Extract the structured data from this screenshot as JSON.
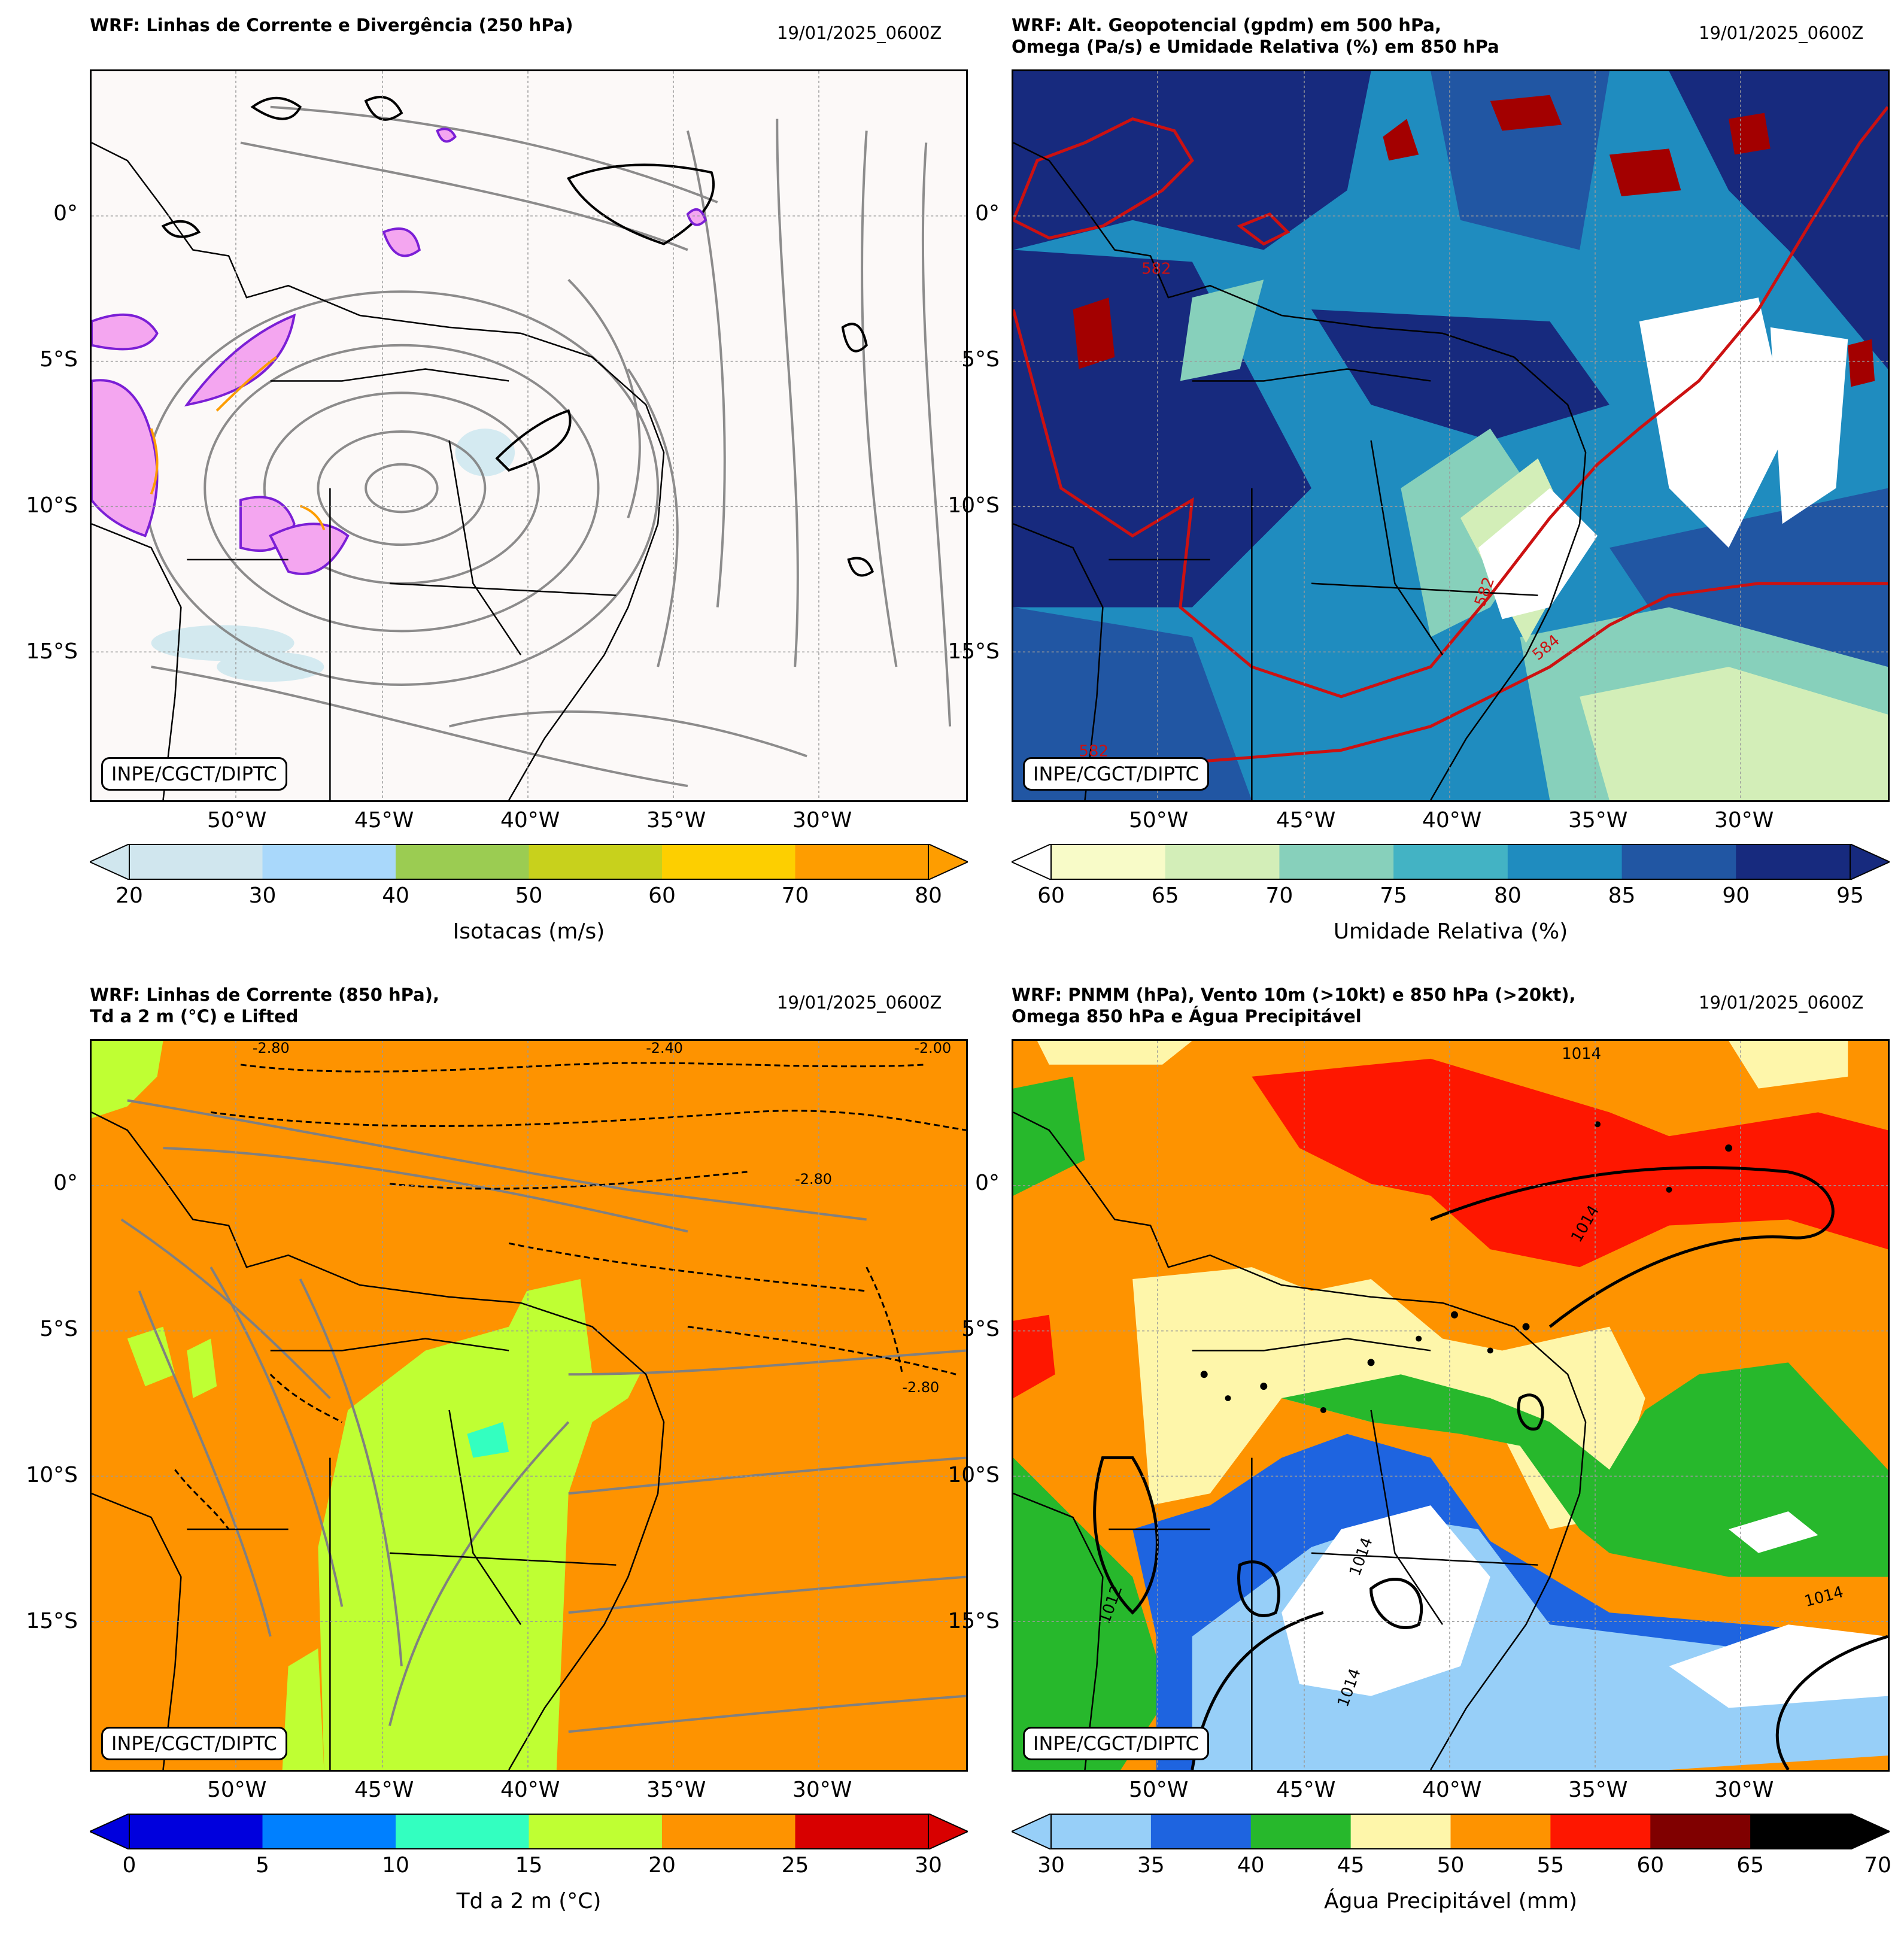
{
  "colors": {
    "coast": "#000000",
    "stream": "#808080",
    "geop": "#cc1111"
  },
  "credit": "INPE/CGCT/DIPTC",
  "x_ticks": [
    "50°W",
    "45°W",
    "40°W",
    "35°W",
    "30°W"
  ],
  "y_ticks": [
    "0°",
    "5°S",
    "10°S",
    "15°S"
  ],
  "panels": [
    {
      "id": "p1",
      "title": "WRF: Linhas de Corrente e Divergência (250 hPa)",
      "date": "19/01/2025_0600Z",
      "colorbar": {
        "label": "Isotacas (m/s)",
        "ticks": [
          "20",
          "30",
          "40",
          "50",
          "60",
          "70",
          "80"
        ],
        "colors": [
          "#d0e6ee",
          "#a9d8fb",
          "#9bcc52",
          "#c8d11c",
          "#fdcf00",
          "#fe9d00"
        ]
      }
    },
    {
      "id": "p2",
      "title": "WRF: Alt. Geopotencial (gpdm) em 500 hPa,\nOmega (Pa/s) e Umidade Relativa (%) em 850 hPa",
      "date": "19/01/2025_0600Z",
      "contour_labels": [
        "582",
        "582",
        "584",
        "582"
      ],
      "colorbar": {
        "label": "Umidade Relativa (%)",
        "ticks": [
          "60",
          "65",
          "70",
          "75",
          "80",
          "85",
          "90",
          "95"
        ],
        "colors": [
          "#f8fbc8",
          "#d3eeb8",
          "#87d0bb",
          "#43b3c4",
          "#1f8cbf",
          "#2156a3",
          "#172a7e"
        ]
      }
    },
    {
      "id": "p3",
      "title": "WRF: Linhas de Corrente (850 hPa),\nTd a 2 m (°C) e Lifted",
      "date": "19/01/2025_0600Z",
      "contour_labels": [
        "-2.80",
        "-2.40",
        "-2.80",
        "-2.00",
        "-2.80"
      ],
      "colorbar": {
        "label": "Td a 2 m (°C)",
        "ticks": [
          "0",
          "5",
          "10",
          "15",
          "20",
          "25",
          "30"
        ],
        "colors": [
          "#0000dd",
          "#0080ff",
          "#33ffc0",
          "#bfff33",
          "#fe9300",
          "#d80000"
        ]
      }
    },
    {
      "id": "p4",
      "title": "WRF: PNMM (hPa), Vento 10m (>10kt) e 850 hPa (>20kt),\nOmega 850 hPa e Água Precipitável",
      "date": "19/01/2025_0600Z",
      "contour_labels": [
        "1014",
        "1014",
        "1012",
        "1014",
        "1014",
        "1014"
      ],
      "colorbar": {
        "label": "Água Precipitável (mm)",
        "ticks": [
          "30",
          "35",
          "40",
          "45",
          "50",
          "55",
          "60",
          "65",
          "70"
        ],
        "colors": [
          "#97cff8",
          "#1e64e0",
          "#27b82c",
          "#fef6aa",
          "#fe9300",
          "#fe1700",
          "#800000",
          "#000000"
        ]
      }
    }
  ]
}
